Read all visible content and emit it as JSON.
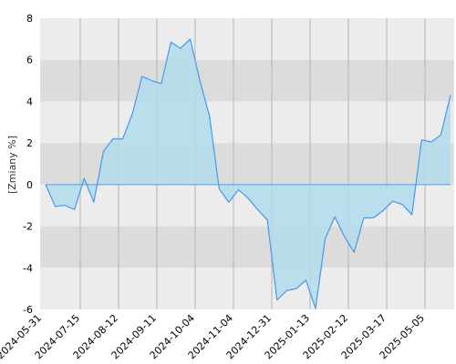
{
  "chart_data": {
    "type": "area",
    "title": "",
    "xlabel": "",
    "ylabel": "[Zmiany %]",
    "ylim": [
      -6,
      8
    ],
    "y_ticks": [
      "-6",
      "-4",
      "-2",
      "0",
      "2",
      "4",
      "6",
      "8"
    ],
    "x_ticks": [
      "2024-05-31",
      "2024-07-15",
      "2024-08-12",
      "2024-09-11",
      "2024-10-04",
      "2024-11-04",
      "2024-12-31",
      "2025-01-13",
      "2025-02-12",
      "2025-03-17",
      "2025-05-05"
    ],
    "grid": true,
    "colors": {
      "line": "#4f9ee8",
      "fill": "#b3dced",
      "band_dark": "#dcdcdc",
      "band_light": "#ececec",
      "vgrid": "#b4b4b4"
    },
    "series": [
      {
        "name": "",
        "values": [
          0,
          -1.05,
          -1.0,
          -1.2,
          0.3,
          -0.85,
          1.6,
          2.2,
          2.2,
          3.4,
          5.2,
          5.0,
          4.85,
          6.85,
          6.55,
          7.0,
          5.0,
          3.3,
          -0.2,
          -0.85,
          -0.25,
          -0.65,
          -1.2,
          -1.7,
          -5.55,
          -5.1,
          -5.0,
          -4.6,
          -5.95,
          -2.6,
          -1.55,
          -2.5,
          -3.25,
          -1.6,
          -1.6,
          -1.25,
          -0.8,
          -0.95,
          -1.45,
          2.15,
          2.05,
          2.4,
          4.3
        ]
      }
    ]
  }
}
